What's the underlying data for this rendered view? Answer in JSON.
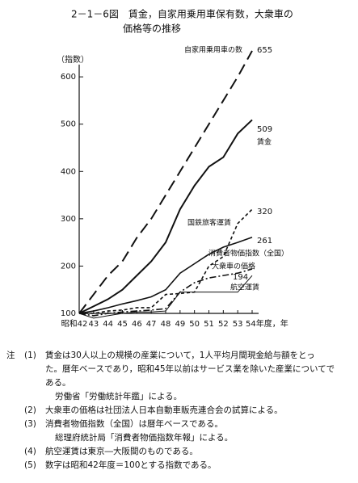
{
  "chart_data": {
    "type": "line",
    "title": "2－1－6図　賃金，自家用乗用車保有数，大衆車の",
    "subtitle": "価格等の推移",
    "y_label": "（指数）",
    "categories": [
      "昭和42",
      "43",
      "44",
      "45",
      "46",
      "47",
      "48",
      "49",
      "50",
      "51",
      "52",
      "53",
      "54年度，年"
    ],
    "ylim": [
      100,
      660
    ],
    "yticks": [
      100,
      200,
      300,
      400,
      500,
      600
    ],
    "series": [
      {
        "name": "自家用乗用車の数",
        "color": "#111",
        "dash": "14,7",
        "width": 2,
        "values": [
          100,
          140,
          180,
          210,
          260,
          300,
          350,
          400,
          450,
          500,
          550,
          600,
          655
        ]
      },
      {
        "name": "賃金",
        "color": "#111",
        "dash": "none",
        "width": 2,
        "values": [
          100,
          115,
          130,
          150,
          180,
          210,
          250,
          320,
          370,
          410,
          430,
          480,
          509
        ]
      },
      {
        "name": "国鉄旅客運賃",
        "color": "#111",
        "dash": "4,3",
        "width": 1.6,
        "values": [
          100,
          100,
          105,
          107,
          112,
          112,
          140,
          142,
          145,
          200,
          220,
          290,
          320
        ]
      },
      {
        "name": "消費者物価指数（全国）",
        "color": "#111",
        "dash": "none",
        "width": 1.6,
        "values": [
          100,
          105,
          112,
          120,
          127,
          135,
          150,
          185,
          205,
          225,
          240,
          250,
          261
        ]
      },
      {
        "name": "大衆車の価格",
        "color": "#111",
        "dash": "8,3,2,3",
        "width": 1.6,
        "values": [
          100,
          95,
          100,
          103,
          105,
          107,
          110,
          145,
          165,
          175,
          180,
          185,
          194
        ]
      },
      {
        "name": "航空運賃",
        "color": "#111",
        "dash": "none",
        "width": 1,
        "values": [
          100,
          90,
          95,
          100,
          103,
          103,
          105,
          145,
          145,
          145,
          145,
          145,
          180
        ]
      }
    ],
    "notes_head": "注",
    "notes": [
      {
        "mark": "(1)",
        "lines": [
          "賃金は30人以上の規模の産業について，1人平均月間現金給与額をとっ",
          "た。暦年ベースであり，昭和45年以前はサービス業を除いた産業についてで",
          "ある。",
          "労働省「労働統計年鑑」による。"
        ]
      },
      {
        "mark": "(2)",
        "lines": [
          "大衆車の価格は社団法人日本自動車販売連合会の試算による。"
        ]
      },
      {
        "mark": "(3)",
        "lines": [
          "消費者物価指数（全国）は暦年ベースである。",
          "総理府統計局「消費者物価指数年報」による。"
        ]
      },
      {
        "mark": "(4)",
        "lines": [
          "航空運賃は東京―大阪間のものである。"
        ]
      },
      {
        "mark": "(5)",
        "lines": [
          "数字は昭和42年度＝100とする指数である。"
        ]
      }
    ]
  }
}
